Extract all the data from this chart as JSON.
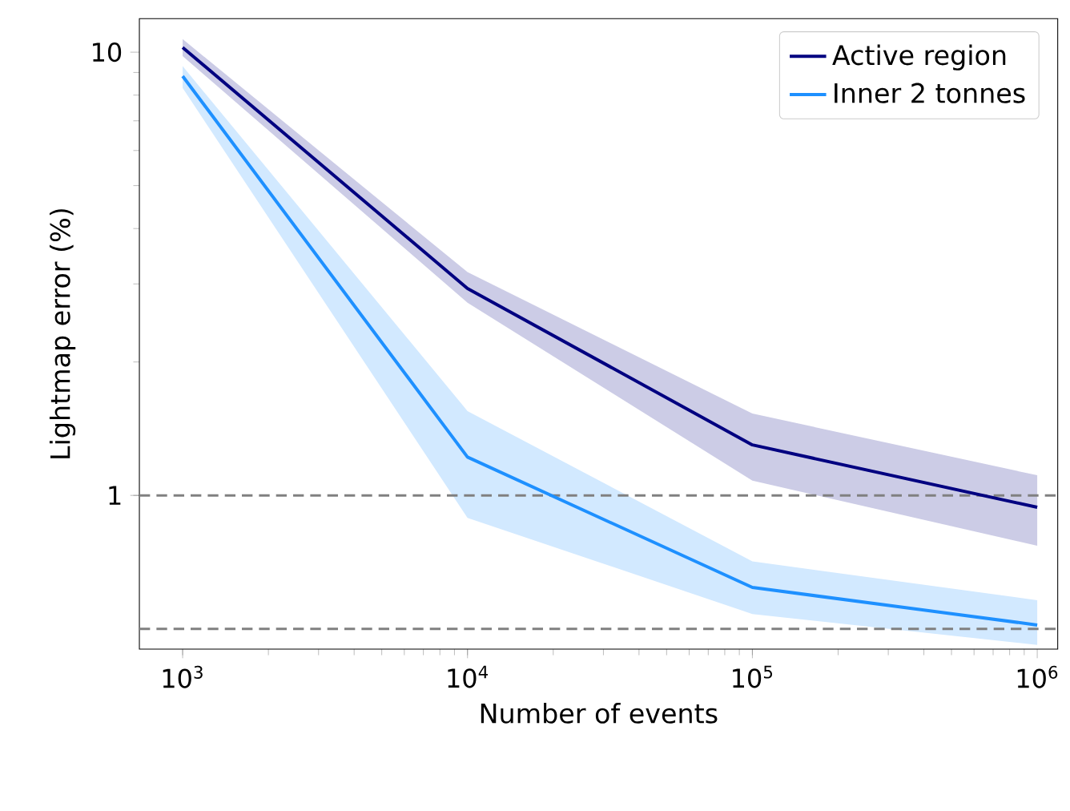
{
  "chart_data": {
    "type": "line",
    "xlabel": "Number of events",
    "ylabel": "Lightmap error (%)",
    "log": "xy",
    "x": [
      1000,
      10000,
      100000,
      1000000
    ],
    "series": [
      {
        "name": "Active region",
        "color": "#000080",
        "values": [
          10.25,
          2.93,
          1.3,
          0.94
        ],
        "lower": [
          9.8,
          2.72,
          1.08,
          0.77
        ],
        "upper": [
          10.7,
          3.19,
          1.53,
          1.11
        ]
      },
      {
        "name": "Inner 2 tonnes",
        "color": "#1e90ff",
        "values": [
          8.83,
          1.22,
          0.62,
          0.51
        ],
        "lower": [
          8.3,
          0.89,
          0.54,
          0.46
        ],
        "upper": [
          9.3,
          1.55,
          0.71,
          0.58
        ]
      }
    ],
    "xlim": [
      705,
      1180000
    ],
    "ylim": [
      0.45,
      11.9
    ],
    "xticks": [
      {
        "value": 1000,
        "label": "10$^{3}$"
      },
      {
        "value": 10000,
        "label": "10$^{4}$"
      },
      {
        "value": 100000,
        "label": "10$^{5}$"
      },
      {
        "value": 1000000,
        "label": "10$^{6}$"
      }
    ],
    "yticks": [
      1,
      10
    ],
    "ref_lines": [
      {
        "axis": "y",
        "value": 1,
        "color": "#808080",
        "line_style": "dashed"
      },
      {
        "axis": "y",
        "value": 0.5,
        "color": "#808080",
        "line_style": "dashed"
      }
    ],
    "legend": "top right",
    "grid": false,
    "marker": "none",
    "line_style": "solid"
  }
}
